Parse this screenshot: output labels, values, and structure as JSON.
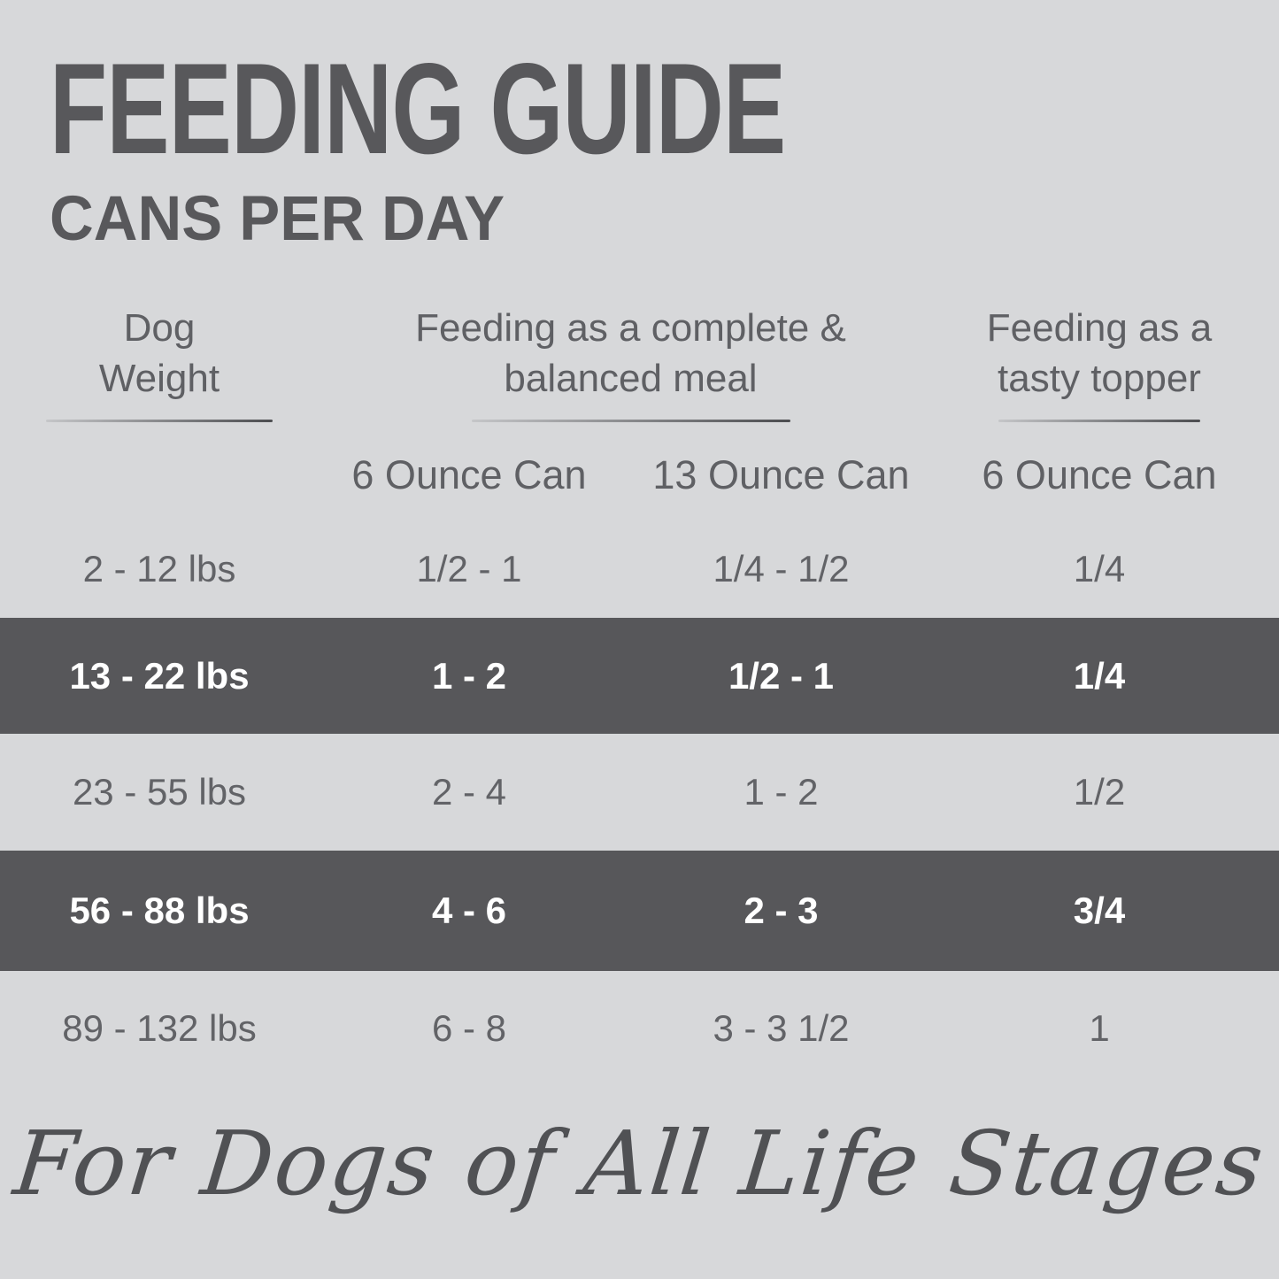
{
  "title": "FEEDING GUIDE",
  "subtitle": "CANS PER DAY",
  "chart_data": {
    "type": "table",
    "column_groups": [
      {
        "label_line1": "Dog",
        "label_line2": "Weight",
        "span": 1
      },
      {
        "label_line1": "Feeding as a complete &",
        "label_line2": "balanced meal",
        "span": 2
      },
      {
        "label_line1": "Feeding as a",
        "label_line2": "tasty topper",
        "span": 1
      }
    ],
    "subheaders": [
      "6 Ounce Can",
      "13 Ounce Can",
      "6 Ounce Can"
    ],
    "rows": [
      {
        "cells": [
          "2 - 12 lbs",
          "1/2 - 1",
          "1/4 - 1/2",
          "1/4"
        ],
        "highlighted": false
      },
      {
        "cells": [
          "13 - 22 lbs",
          "1 - 2",
          "1/2 - 1",
          "1/4"
        ],
        "highlighted": true
      },
      {
        "cells": [
          "23 - 55 lbs",
          "2 - 4",
          "1 - 2",
          "1/2"
        ],
        "highlighted": false
      },
      {
        "cells": [
          "56 - 88 lbs",
          "4 - 6",
          "2 - 3",
          "3/4"
        ],
        "highlighted": true
      },
      {
        "cells": [
          "89 - 132 lbs",
          "6 - 8",
          "3 - 3 1/2",
          "1"
        ],
        "highlighted": false
      }
    ]
  },
  "footer": {
    "tagline": "For Dogs of All Life Stages"
  },
  "colors": {
    "background": "#d7d8da",
    "highlight_band": "#57575a",
    "title_text": "#58585b",
    "header_text": "#5f6064",
    "row_text": "#626367",
    "highlight_row_text": "#ffffff",
    "tagline_text": "#505154"
  }
}
